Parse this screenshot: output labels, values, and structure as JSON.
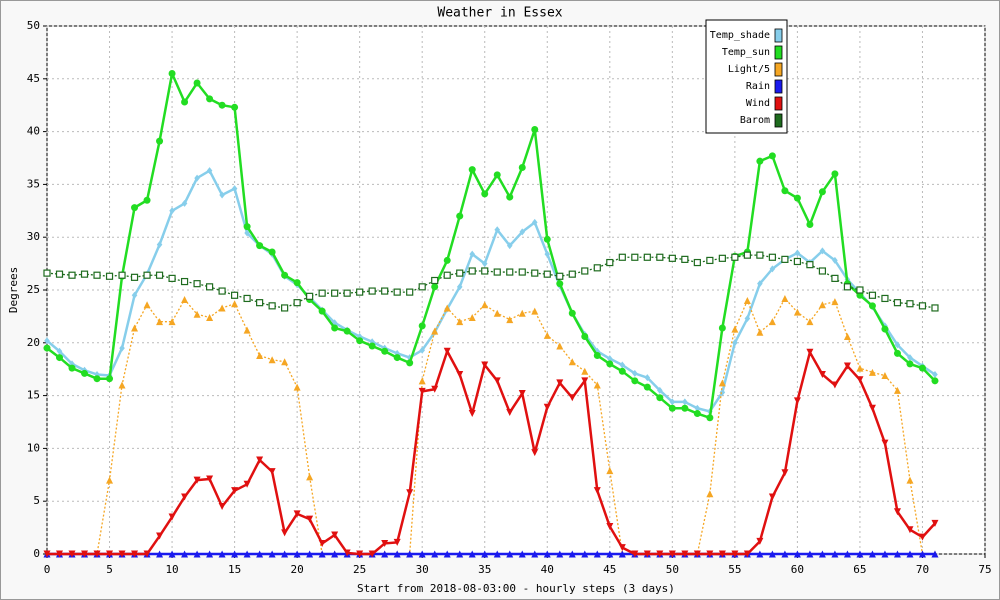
{
  "chart_data": {
    "type": "line",
    "title": "Weather in Essex",
    "x_label": "Start from 2018-08-03:00 - hourly steps (3 days)",
    "y_label": "Degrees",
    "x": [
      0,
      1,
      2,
      3,
      4,
      5,
      6,
      7,
      8,
      9,
      10,
      11,
      12,
      13,
      14,
      15,
      16,
      17,
      18,
      19,
      20,
      21,
      22,
      23,
      24,
      25,
      26,
      27,
      28,
      29,
      30,
      31,
      32,
      33,
      34,
      35,
      36,
      37,
      38,
      39,
      40,
      41,
      42,
      43,
      44,
      45,
      46,
      47,
      48,
      49,
      50,
      51,
      52,
      53,
      54,
      55,
      56,
      57,
      58,
      59,
      60,
      61,
      62,
      63,
      64,
      65,
      66,
      67,
      68,
      69,
      70,
      71
    ],
    "xlim": [
      0,
      75
    ],
    "xticks": [
      0,
      5,
      10,
      15,
      20,
      25,
      30,
      35,
      40,
      45,
      50,
      55,
      60,
      65,
      70,
      75
    ],
    "ylim": [
      0,
      50
    ],
    "yticks": [
      0,
      5,
      10,
      15,
      20,
      25,
      30,
      35,
      40,
      45,
      50
    ],
    "grid": true,
    "legend": "upper right",
    "series": [
      {
        "name": "Temp_shade",
        "color": "#87ceeb",
        "marker": "diamond",
        "dashed": false,
        "values": [
          20.2,
          19.2,
          18,
          17.4,
          17,
          16.9,
          19.5,
          24.5,
          26.5,
          29.3,
          32.5,
          33.2,
          35.6,
          36.3,
          34,
          34.6,
          30.4,
          29.2,
          28.4,
          26.3,
          25.5,
          24.3,
          23.1,
          21.9,
          21.2,
          20.6,
          20.1,
          19.5,
          19,
          18.6,
          19.3,
          21,
          23.2,
          25.3,
          28.4,
          27.5,
          30.7,
          29.2,
          30.5,
          31.4,
          28.4,
          25.4,
          22.8,
          20.8,
          19.2,
          18.5,
          17.9,
          17.1,
          16.7,
          15.5,
          14.4,
          14.4,
          13.8,
          13.5,
          15.3,
          20,
          22.3,
          25.6,
          27,
          27.9,
          28.5,
          27.6,
          28.7,
          27.8,
          26,
          24.7,
          23.4,
          21.6,
          19.8,
          18.6,
          17.8,
          17
        ]
      },
      {
        "name": "Temp_sun",
        "color": "#22dd22",
        "marker": "circle",
        "dashed": false,
        "values": [
          19.5,
          18.6,
          17.6,
          17.1,
          16.6,
          16.6,
          26.3,
          32.8,
          33.5,
          39.1,
          45.5,
          42.8,
          44.6,
          43.1,
          42.5,
          42.3,
          31,
          29.2,
          28.6,
          26.4,
          25.7,
          24.1,
          23,
          21.4,
          21.1,
          20.2,
          19.7,
          19.2,
          18.6,
          18.1,
          21.6,
          25.3,
          27.8,
          32,
          36.4,
          34.1,
          35.9,
          33.8,
          36.6,
          40.2,
          29.8,
          25.6,
          22.8,
          20.6,
          18.8,
          18,
          17.3,
          16.4,
          15.8,
          14.8,
          13.8,
          13.8,
          13.3,
          12.9,
          21.4,
          28.2,
          28.6,
          37.2,
          37.7,
          34.4,
          33.7,
          31.2,
          34.3,
          36,
          25.6,
          24.5,
          23.5,
          21.3,
          19,
          18,
          17.6,
          16.4
        ]
      },
      {
        "name": "Light/5",
        "color": "#f5a623",
        "marker": "triangle-up",
        "dashed": true,
        "values": [
          0,
          0,
          0,
          0,
          0,
          7,
          16,
          21.4,
          23.6,
          22,
          22,
          24.1,
          22.7,
          22.4,
          23.3,
          23.7,
          21.2,
          18.8,
          18.4,
          18.2,
          15.8,
          7.3,
          0,
          0,
          0,
          0,
          0,
          0,
          0,
          0,
          16.4,
          21.1,
          23.3,
          22,
          22.4,
          23.6,
          22.8,
          22.2,
          22.8,
          23,
          20.7,
          19.7,
          18.2,
          17.3,
          16,
          7.9,
          0,
          0,
          0,
          0,
          0,
          0,
          0,
          5.7,
          16.2,
          21.3,
          24,
          21,
          22,
          24.2,
          22.9,
          22,
          23.6,
          23.9,
          20.6,
          17.6,
          17.2,
          16.9,
          15.5,
          7,
          0,
          0
        ]
      },
      {
        "name": "Rain",
        "color": "#1a1aee",
        "marker": "triangle-up",
        "dashed": false,
        "values": [
          0,
          0,
          0,
          0,
          0,
          0,
          0,
          0,
          0,
          0,
          0,
          0,
          0,
          0,
          0,
          0,
          0,
          0,
          0,
          0,
          0,
          0,
          0,
          0,
          0,
          0,
          0,
          0,
          0,
          0,
          0,
          0,
          0,
          0,
          0,
          0,
          0,
          0,
          0,
          0,
          0,
          0,
          0,
          0,
          0,
          0,
          0,
          0,
          0,
          0,
          0,
          0,
          0,
          0,
          0,
          0,
          0,
          0,
          0,
          0,
          0,
          0,
          0,
          0,
          0,
          0,
          0,
          0,
          0,
          0,
          0,
          0
        ]
      },
      {
        "name": "Wind",
        "color": "#e01010",
        "marker": "triangle-down",
        "dashed": false,
        "values": [
          0,
          0,
          0,
          0,
          0,
          0,
          0,
          0,
          0,
          1.7,
          3.5,
          5.4,
          7,
          7.1,
          4.5,
          6,
          6.6,
          8.9,
          7.8,
          2,
          3.8,
          3.3,
          1,
          1.8,
          0.1,
          0,
          0,
          1,
          1.1,
          5.8,
          15.4,
          15.6,
          19.2,
          17,
          13.3,
          17.9,
          16.4,
          13.4,
          15.2,
          9.6,
          13.9,
          16.2,
          14.8,
          16.4,
          6,
          2.6,
          0.6,
          0,
          0,
          0,
          0,
          0,
          0,
          0,
          0,
          0,
          0,
          1.2,
          5.4,
          7.7,
          14.5,
          19.1,
          17,
          16,
          17.8,
          16.5,
          13.8,
          10.5,
          4,
          2.3,
          1.6,
          2.9
        ]
      },
      {
        "name": "Barom",
        "color": "#1e6b1e",
        "marker": "square-open",
        "dashed": true,
        "values": [
          26.6,
          26.5,
          26.4,
          26.5,
          26.4,
          26.3,
          26.4,
          26.2,
          26.4,
          26.4,
          26.1,
          25.8,
          25.6,
          25.3,
          24.9,
          24.5,
          24.2,
          23.8,
          23.5,
          23.3,
          23.8,
          24.4,
          24.7,
          24.7,
          24.7,
          24.8,
          24.9,
          24.9,
          24.8,
          24.8,
          25.3,
          25.9,
          26.4,
          26.6,
          26.8,
          26.8,
          26.7,
          26.7,
          26.7,
          26.6,
          26.5,
          26.3,
          26.5,
          26.8,
          27.1,
          27.6,
          28.1,
          28.1,
          28.1,
          28.1,
          28,
          27.9,
          27.6,
          27.8,
          28,
          28.1,
          28.3,
          28.3,
          28.1,
          27.9,
          27.7,
          27.4,
          26.8,
          26.1,
          25.3,
          25,
          24.5,
          24.2,
          23.8,
          23.7,
          23.5,
          23.3
        ]
      }
    ]
  }
}
